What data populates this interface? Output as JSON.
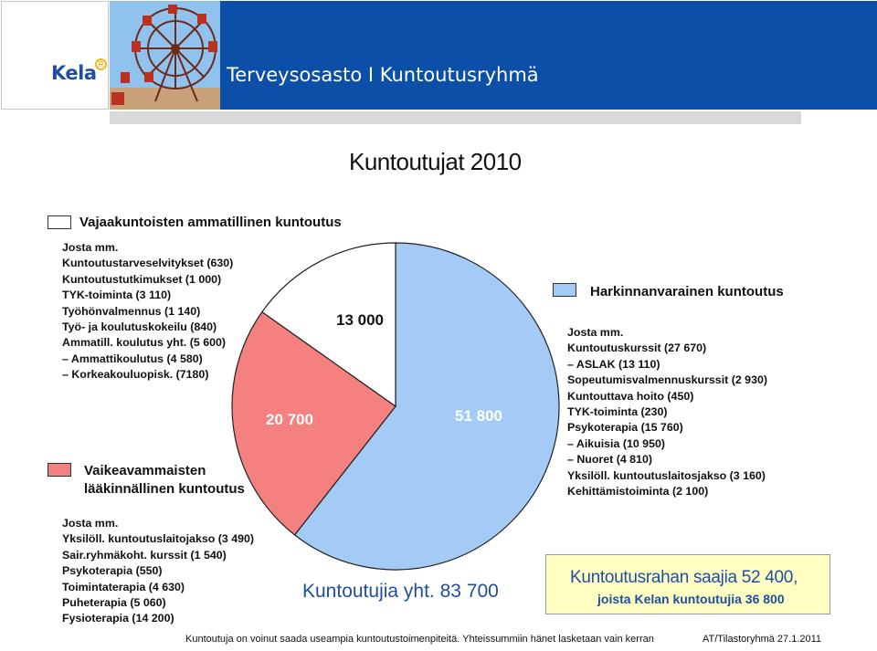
{
  "header": {
    "logo_text": "Kela",
    "logo_mark": "R",
    "title": "Terveysosasto I Kuntoutusryhmä"
  },
  "colors": {
    "header_band": "#0b4fa8",
    "slice_blue": "#a3cbf5",
    "slice_red": "#f58080",
    "slice_white": "#ffffff",
    "total_text": "#1f4e9e",
    "yellow_box": "#ffffc4"
  },
  "chart_data": {
    "type": "pie",
    "title": "Kuntoutujat 2010",
    "slices": [
      {
        "name": "Harkinnanvarainen kuntoutus",
        "value": 51800,
        "label": "51 800",
        "color": "#a3cbf5"
      },
      {
        "name": "Vaikeavammaisten lääkinnällinen kuntoutus",
        "value": 20700,
        "label": "20 700",
        "color": "#f58080"
      },
      {
        "name": "Vajaakuntoisten ammatillinen kuntoutus",
        "value": 13000,
        "label": "13 000",
        "color": "#ffffff"
      }
    ],
    "total_label": "Kuntoutujia yht. 83 700"
  },
  "legend": {
    "vajaakuntoisten": {
      "label": "Vajaakuntoisten ammatillinen kuntoutus",
      "items": [
        "Josta mm.",
        "Kuntoutustarveselvitykset (630)",
        "Kuntoutustutkimukset (1 000)",
        "TYK-toiminta (3 110)",
        "Työhönvalmennus (1 140)",
        "Työ- ja koulutuskokeilu (840)",
        "Ammatill. koulutus yht. (5 600)",
        "– Ammattikoulutus (4 580)",
        "– Korkeakouluopisk. (7180)"
      ]
    },
    "harkinnanvarainen": {
      "label": "Harkinnanvarainen kuntoutus",
      "items": [
        "Josta mm.",
        "Kuntoutuskurssit (27 670)",
        "– ASLAK (13 110)",
        "Sopeutumisvalmennuskurssit  (2 930)",
        "Kuntouttava hoito (450)",
        "TYK-toiminta (230)",
        "Psykoterapia (15 760)",
        "– Aikuisia (10 950)",
        "– Nuoret (4 810)",
        "Yksilöll. kuntoutuslaitosjakso (3 160)",
        "Kehittämistoiminta (2 100)"
      ]
    },
    "vaikeavammaisten": {
      "label_line1": "Vaikeavammaisten",
      "label_line2": "lääkinnällinen kuntoutus",
      "items": [
        "Josta mm.",
        "Yksilöll. kuntoutuslaitojakso (3 490)",
        "Sair.ryhmäkoht. kurssit (1 540)",
        "Psykoterapia (550)",
        "Toimintaterapia (4 630)",
        "Puheterapia (5 060)",
        "Fysioterapia (14 200)"
      ]
    }
  },
  "yellow_box": {
    "line1": "Kuntoutusrahan saajia 52 400,",
    "line2": "joista Kelan kuntoutujia 36 800"
  },
  "footer": {
    "note": "Kuntoutuja on voinut saada useampia kuntoutustoimenpiteitä. Yhteissummiin hänet lasketaan vain kerran",
    "source": "AT/Tilastoryhmä  27.1.2011"
  }
}
